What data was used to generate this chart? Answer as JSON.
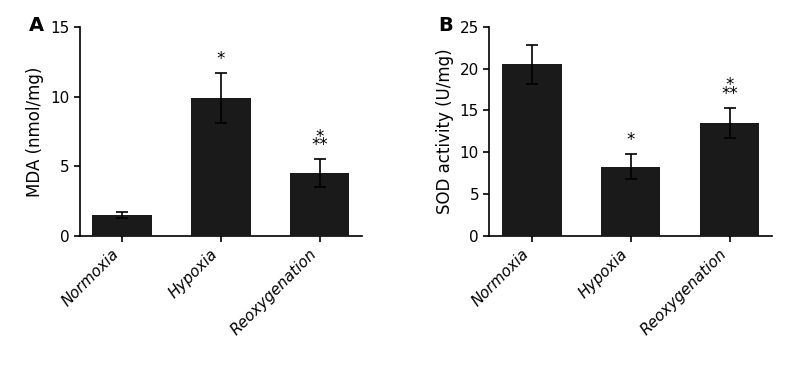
{
  "panel_A": {
    "label": "A",
    "categories": [
      "Normoxia",
      "Hypoxia",
      "Reoxygenation"
    ],
    "values": [
      1.5,
      9.9,
      4.5
    ],
    "errors": [
      0.2,
      1.8,
      1.0
    ],
    "ylabel": "MDA (nmol/mg)",
    "ylim": [
      0,
      15
    ],
    "yticks": [
      0,
      5,
      10,
      15
    ],
    "star1": [
      false,
      true,
      true
    ],
    "star2": [
      false,
      false,
      true
    ]
  },
  "panel_B": {
    "label": "B",
    "categories": [
      "Normoxia",
      "Hypoxia",
      "Reoxygenation"
    ],
    "values": [
      20.5,
      8.3,
      13.5
    ],
    "errors": [
      2.3,
      1.5,
      1.8
    ],
    "ylabel": "SOD activity (U/mg)",
    "ylim": [
      0,
      25
    ],
    "yticks": [
      0,
      5,
      10,
      15,
      20,
      25
    ],
    "star1": [
      false,
      true,
      true
    ],
    "star2": [
      false,
      false,
      true
    ]
  },
  "bar_color": "#1a1a1a",
  "bar_width": 0.6,
  "capsize": 4,
  "tick_fontsize": 11,
  "label_fontsize": 12,
  "panel_label_fontsize": 14,
  "annotation_fontsize": 12
}
